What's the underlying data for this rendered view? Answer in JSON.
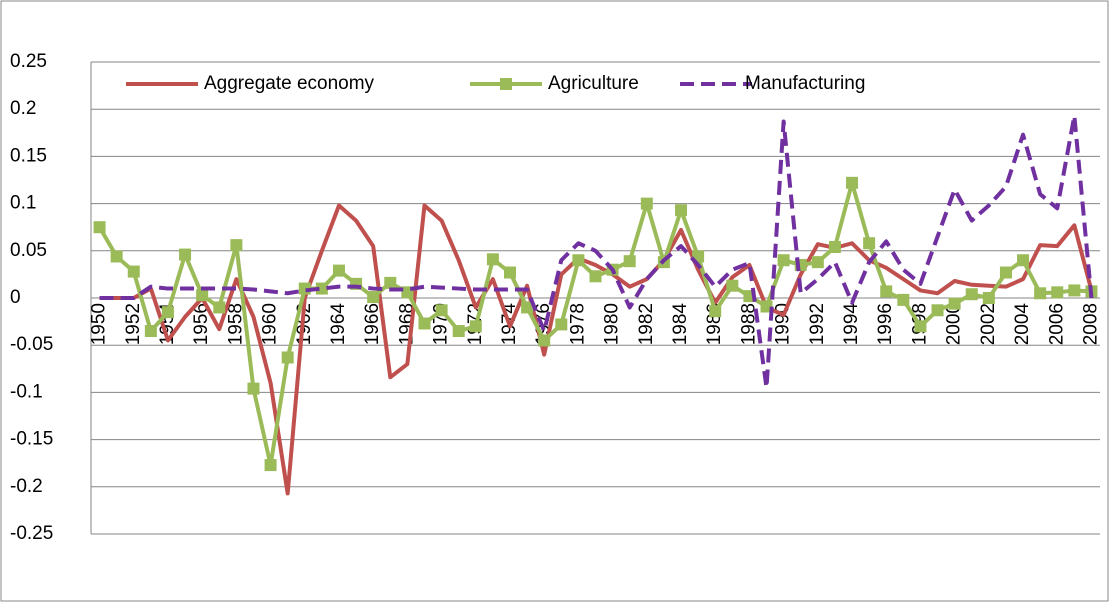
{
  "chart_data": {
    "type": "line",
    "categories": [
      "1950",
      null,
      "1952",
      null,
      "1954",
      null,
      "1956",
      null,
      "1958",
      null,
      "1960",
      null,
      "1962",
      null,
      "1964",
      null,
      "1966",
      null,
      "1968",
      null,
      "1970",
      null,
      "1972",
      null,
      "1974",
      null,
      "1976",
      null,
      "1978",
      null,
      "1980",
      null,
      "1982",
      null,
      "1984",
      null,
      "1986",
      null,
      "1988",
      null,
      "1990",
      null,
      "1992",
      null,
      "1994",
      null,
      "1996",
      null,
      "1998",
      null,
      "2000",
      null,
      "2002",
      null,
      "2004",
      null,
      "2006",
      null,
      "2008"
    ],
    "series": [
      {
        "name": "Aggregate economy",
        "color": "#c0504d",
        "dashed": false,
        "marker": false,
        "values": [
          0,
          0,
          0,
          0.01,
          -0.045,
          -0.02,
          0,
          -0.033,
          0.02,
          -0.02,
          -0.09,
          -0.207,
          0,
          0.05,
          0.098,
          0.082,
          0.055,
          -0.084,
          -0.07,
          0.098,
          0.082,
          0.04,
          -0.01,
          0.02,
          -0.03,
          0.013,
          -0.06,
          0.025,
          0.042,
          0.035,
          0.025,
          0.012,
          0.02,
          0.04,
          0.072,
          0.03,
          -0.005,
          0.022,
          0.035,
          -0.01,
          -0.018,
          0.025,
          0.057,
          0.053,
          0.058,
          0.04,
          0.032,
          0.02,
          0.008,
          0.005,
          0.018,
          0.014,
          0.013,
          0.012,
          0.02,
          0.056,
          0.055,
          0.077,
          0.008
        ]
      },
      {
        "name": "Agriculture",
        "color": "#9bbb59",
        "dashed": false,
        "marker": true,
        "values": [
          0.075,
          0.044,
          0.028,
          -0.035,
          -0.015,
          0.046,
          0.003,
          -0.01,
          0.056,
          -0.096,
          -0.177,
          -0.063,
          0.01,
          0.01,
          0.029,
          0.015,
          0.001,
          0.016,
          0.006,
          -0.027,
          -0.013,
          -0.035,
          -0.03,
          0.041,
          0.027,
          -0.01,
          -0.045,
          -0.028,
          0.04,
          0.023,
          0.03,
          0.039,
          0.1,
          0.038,
          0.093,
          0.044,
          -0.014,
          0.013,
          0.002,
          -0.009,
          0.04,
          0.035,
          0.038,
          0.054,
          0.122,
          0.058,
          0.007,
          -0.002,
          -0.03,
          -0.013,
          -0.006,
          0.004,
          0,
          0.027,
          0.04,
          0.005,
          0.006,
          0.008,
          0.007
        ]
      },
      {
        "name": "Manufacturing",
        "color": "#7030a0",
        "dashed": true,
        "marker": false,
        "values": [
          0,
          0,
          0,
          0.012,
          0.01,
          0.01,
          0.01,
          0.01,
          0.01,
          0.009,
          0.007,
          0.005,
          0.008,
          0.01,
          0.012,
          0.012,
          0.01,
          0.009,
          0.009,
          0.012,
          0.011,
          0.01,
          0.009,
          0.009,
          0.009,
          0.009,
          -0.035,
          0.04,
          0.058,
          0.05,
          0.03,
          -0.01,
          0.02,
          0.04,
          0.055,
          0.035,
          0.012,
          0.03,
          0.037,
          -0.095,
          0.187,
          0.005,
          0.02,
          0.038,
          -0.005,
          0.038,
          0.06,
          0.03,
          0.015,
          0.065,
          0.115,
          0.082,
          0.098,
          0.118,
          0.173,
          0.11,
          0.095,
          0.193,
          0
        ]
      }
    ],
    "ylim": [
      -0.3,
      0.3
    ],
    "yticks": [
      -0.25,
      -0.2,
      -0.15,
      -0.1,
      -0.05,
      0,
      0.05,
      0.1,
      0.15,
      0.2,
      0.25
    ],
    "grid": true,
    "legend": "top"
  }
}
